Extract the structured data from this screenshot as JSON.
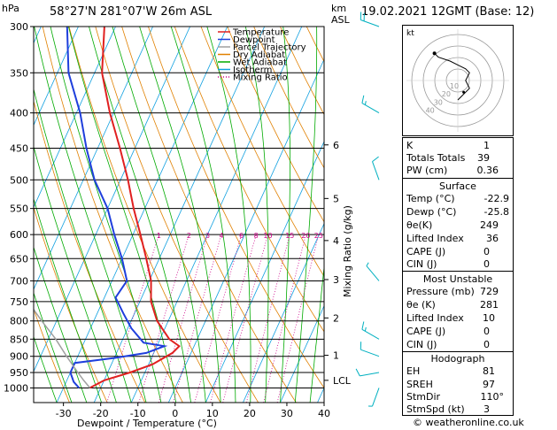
{
  "header": {
    "pressure_unit": "hPa",
    "station": "58°27'N  281°07'W  26m  ASL",
    "height_unit": "km",
    "height_ref": "ASL",
    "valid_time": "19.02.2021  12GMT  (Base: 12)"
  },
  "colors": {
    "temperature": "#e02020",
    "dewpoint": "#1f3fdc",
    "parcel": "#a0a0a0",
    "dry_adiabat": "#e08000",
    "wet_adiabat": "#00aa00",
    "isotherm": "#10a0e0",
    "mixing_ratio": "#cc0088",
    "wind": "#00b0c0"
  },
  "chart_data": {
    "type": "skew-t log-p",
    "xlabel": "Dewpoint / Temperature (°C)",
    "ylabel": "hPa",
    "y2label": "Mixing Ratio (g/kg)",
    "pressure_levels": [
      300,
      350,
      400,
      450,
      500,
      550,
      600,
      650,
      700,
      750,
      800,
      850,
      900,
      950,
      1000
    ],
    "temperature_ticks": [
      -30,
      -20,
      -10,
      0,
      10,
      20,
      30,
      40
    ],
    "km_ticks": [
      {
        "label": "6",
        "p": 445
      },
      {
        "label": "5",
        "p": 532
      },
      {
        "label": "4",
        "p": 612
      },
      {
        "label": "3",
        "p": 697
      },
      {
        "label": "2",
        "p": 792
      },
      {
        "label": "1",
        "p": 897
      },
      {
        "label": "LCL",
        "p": 975
      }
    ],
    "mixing_ratio_labels": [
      "1",
      "2",
      "3",
      "4",
      "6",
      "8",
      "10",
      "15",
      "20",
      "25"
    ],
    "mixing_ratio_label_p": 600,
    "legend": [
      "Temperature",
      "Dewpoint",
      "Parcel Trajectory",
      "Dry Adiabat",
      "Wet Adiabat",
      "Isotherm",
      "Mixing Ratio"
    ],
    "legend_placement": "top-left",
    "series": [
      {
        "name": "Temperature",
        "points": [
          [
            1000,
            -22.9
          ],
          [
            975,
            -20
          ],
          [
            950,
            -14
          ],
          [
            925,
            -9
          ],
          [
            890,
            -5
          ],
          [
            870,
            -4
          ],
          [
            850,
            -7.5
          ],
          [
            800,
            -13
          ],
          [
            750,
            -17
          ],
          [
            700,
            -19.5
          ],
          [
            650,
            -23.5
          ],
          [
            600,
            -28
          ],
          [
            550,
            -33
          ],
          [
            500,
            -38
          ],
          [
            450,
            -44
          ],
          [
            400,
            -51
          ],
          [
            350,
            -58
          ],
          [
            300,
            -63
          ]
        ]
      },
      {
        "name": "Dewpoint",
        "points": [
          [
            1000,
            -25.8
          ],
          [
            980,
            -28
          ],
          [
            950,
            -30
          ],
          [
            920,
            -30
          ],
          [
            905,
            -20
          ],
          [
            890,
            -12
          ],
          [
            870,
            -8
          ],
          [
            860,
            -14
          ],
          [
            820,
            -19
          ],
          [
            780,
            -23
          ],
          [
            740,
            -27
          ],
          [
            700,
            -26
          ],
          [
            650,
            -30
          ],
          [
            600,
            -35
          ],
          [
            550,
            -40
          ],
          [
            500,
            -47
          ],
          [
            450,
            -53
          ],
          [
            400,
            -59
          ],
          [
            350,
            -67
          ],
          [
            300,
            -73
          ]
        ]
      },
      {
        "name": "Parcel Trajectory",
        "points": [
          [
            1000,
            -22.9
          ],
          [
            975,
            -25.5
          ],
          [
            950,
            -28
          ],
          [
            900,
            -33
          ],
          [
            850,
            -38
          ],
          [
            800,
            -44
          ],
          [
            750,
            -50
          ],
          [
            700,
            -56
          ]
        ]
      }
    ],
    "wind_barbs": [
      {
        "p": 1000,
        "dir": 200,
        "speed_kt": 5
      },
      {
        "p": 950,
        "dir": 260,
        "speed_kt": 10
      },
      {
        "p": 900,
        "dir": 290,
        "speed_kt": 10
      },
      {
        "p": 850,
        "dir": 300,
        "speed_kt": 15
      },
      {
        "p": 700,
        "dir": 320,
        "speed_kt": 5
      },
      {
        "p": 500,
        "dir": 340,
        "speed_kt": 10
      },
      {
        "p": 400,
        "dir": 300,
        "speed_kt": 15
      },
      {
        "p": 300,
        "dir": 290,
        "speed_kt": 20
      }
    ],
    "hodograph": {
      "label": "kt",
      "ring_labels": [
        "10",
        "20",
        "30",
        "40"
      ],
      "trace_uv": [
        [
          0,
          -10
        ],
        [
          2,
          -8
        ],
        [
          6,
          -4
        ],
        [
          4,
          0
        ],
        [
          6,
          4
        ],
        [
          4,
          6
        ],
        [
          0,
          8
        ],
        [
          -4,
          10
        ],
        [
          -10,
          12
        ],
        [
          -12,
          14
        ]
      ],
      "storm_motion_uv": [
        3,
        -6
      ]
    }
  },
  "indices": {
    "top": [
      {
        "label": "K",
        "value": "1"
      },
      {
        "label": "Totals Totals",
        "value": "39"
      },
      {
        "label": "PW (cm)",
        "value": "0.36"
      }
    ],
    "surface_title": "Surface",
    "surface": [
      {
        "label": "Temp (°C)",
        "value": "-22.9"
      },
      {
        "label": "Dewp (°C)",
        "value": "-25.8"
      },
      {
        "label": "θe(K)",
        "value": "249"
      },
      {
        "label": "Lifted Index",
        "value": "36"
      },
      {
        "label": "CAPE (J)",
        "value": "0"
      },
      {
        "label": "CIN (J)",
        "value": "0"
      }
    ],
    "mu_title": "Most Unstable",
    "mu": [
      {
        "label": "Pressure (mb)",
        "value": "729"
      },
      {
        "label": "θe (K)",
        "value": "281"
      },
      {
        "label": "Lifted Index",
        "value": "10"
      },
      {
        "label": "CAPE (J)",
        "value": "0"
      },
      {
        "label": "CIN (J)",
        "value": "0"
      }
    ],
    "hodo_title": "Hodograph",
    "hodo": [
      {
        "label": "EH",
        "value": "81"
      },
      {
        "label": "SREH",
        "value": "97"
      },
      {
        "label": "StmDir",
        "value": "110°"
      },
      {
        "label": "StmSpd (kt)",
        "value": "3"
      }
    ]
  },
  "footer": {
    "copyright": "© weatheronline.co.uk"
  }
}
